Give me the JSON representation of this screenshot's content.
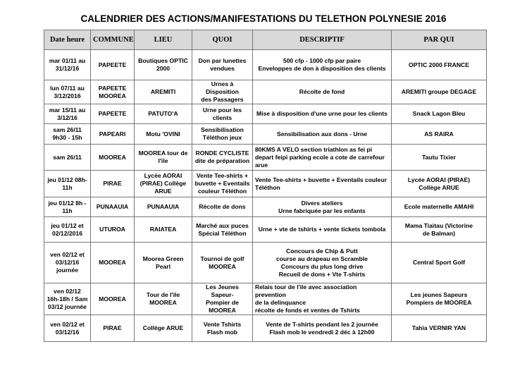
{
  "header": {
    "title": "CALENDRIER DES ACTIONS/MANIFESTATIONS DU TELETHON POLYNESIE 2016"
  },
  "table": {
    "columns": [
      "Date heure",
      "COMMUNE",
      "LIEU",
      "QUOI",
      "DESCRIPTIF",
      "PAR QUI"
    ],
    "rows": [
      [
        [
          "mar 01/11 au",
          "31/12/16"
        ],
        [
          "PAPEETE"
        ],
        [
          "Boutiques OPTIC",
          "2000"
        ],
        [
          "Don par lunettes",
          "vendues"
        ],
        [
          "500 cfp - 1000 cfp par paire",
          "Enveloppes de don à disposition des clients"
        ],
        [
          "OPTIC 2000 FRANCE"
        ]
      ],
      [
        [
          "lun 07/11 au",
          "3/12/2016"
        ],
        [
          "PAPEETE",
          "MOOREA"
        ],
        [
          "AREMITI"
        ],
        [
          "Urnes à Disposition",
          "des Passagers"
        ],
        [
          "Récolte de fond"
        ],
        [
          "AREMITI groupe DEGAGE"
        ]
      ],
      [
        [
          "mar 15/11 au",
          "3/12/16"
        ],
        [
          "PAPEETE"
        ],
        [
          "PATUTO'A"
        ],
        [
          "Urne pour les",
          "clients"
        ],
        [
          "Mise à disposition d'une urne pour les clients"
        ],
        [
          "Snack Lagon Bleu"
        ]
      ],
      [
        [
          "sam 26/11",
          "9h30 - 15h"
        ],
        [
          "PAPEARI"
        ],
        [
          "Motu 'OVINI"
        ],
        [
          "Sensibilisation",
          "Téléthon jeux"
        ],
        [
          "Sensibilisation aux dons - Urne"
        ],
        [
          "AS RAIRA"
        ]
      ],
      [
        [
          "sam 26/11"
        ],
        [
          "MOOREA"
        ],
        [
          "MOOREA tour de",
          "l'ile"
        ],
        [
          "RONDE CYCLISTE",
          "dite de préparation"
        ],
        [
          "80KMS A VELO section triathlon as fei pi",
          "depart feipi parking ecole a cote de carrefour",
          "arue"
        ],
        [
          "Tautu Tixier"
        ]
      ],
      [
        [
          "jeu 01/12 08h-",
          "11h"
        ],
        [
          "PIRAE"
        ],
        [
          "Lycée AORAI",
          "(PIRAE) Collège",
          "ARUE"
        ],
        [
          "Vente Tee-shirts +",
          "buvette + Eventails",
          "couleur Téléthon"
        ],
        [
          "Vente Tee-shirts + buvette + Eventails couleur",
          "Téléthon"
        ],
        [
          "Lycée AORAI (PIRAE)",
          "Collège ARUE"
        ]
      ],
      [
        [
          "jeu 01/12 8h -",
          "11h"
        ],
        [
          "PUNAAUIA"
        ],
        [
          "PUNAAUIA"
        ],
        [
          "Récolte de dons"
        ],
        [
          "Divers ateliers",
          "Urne fabriquée par les enfants"
        ],
        [
          "Ecole maternelle AMAHI"
        ]
      ],
      [
        [
          "jeu 01/12 et",
          "02/12/2016"
        ],
        [
          "UTUROA"
        ],
        [
          "RAIATEA"
        ],
        [
          "Marché aux puces",
          "Spécial Téléthon"
        ],
        [
          "Urne + vte de tshirts + vente tickets tombola"
        ],
        [
          "Mama Tiaitau (Victorine",
          "de Balman)"
        ]
      ],
      [
        [
          "ven 02/12 et",
          "03/12/16",
          "journée"
        ],
        [
          "MOOREA"
        ],
        [
          "Moorea Green",
          "Pearl"
        ],
        [
          "Tournoi de golf",
          "MOOREA"
        ],
        [
          "Concours de Chip & Putt",
          "course au drapeau en Scramble",
          "Concours du plus long drive",
          "Recueil de dons + Vte T-shirts"
        ],
        [
          "Central Sport Golf"
        ]
      ],
      [
        [
          "ven 02/12",
          "16h-18h / Sam",
          "03/12 journée"
        ],
        [
          "MOOREA"
        ],
        [
          "Tour de l'ile",
          "MOOREA"
        ],
        [
          "Les Jeunes Sapeur-",
          "Pompier de",
          "MOOREA"
        ],
        [
          "Relais tour de l'ile avec association prevention",
          "de la delinquance",
          "récolte de fonds et ventes de Tshirts"
        ],
        [
          "Les jeunes Sapeurs",
          "Pompiers de MOOREA"
        ]
      ],
      [
        [
          "ven 02/12  et",
          "03/12/16"
        ],
        [
          "PIRAE"
        ],
        [
          "Collège ARUE"
        ],
        [
          "Vente Tshirts",
          "Flash mob"
        ],
        [
          "Vente de T-shirts pendant les 2 journée",
          "Flash mob le vendredi 2 déc à 12h00"
        ],
        [
          "Tahia VERNIR YAN"
        ]
      ]
    ]
  }
}
